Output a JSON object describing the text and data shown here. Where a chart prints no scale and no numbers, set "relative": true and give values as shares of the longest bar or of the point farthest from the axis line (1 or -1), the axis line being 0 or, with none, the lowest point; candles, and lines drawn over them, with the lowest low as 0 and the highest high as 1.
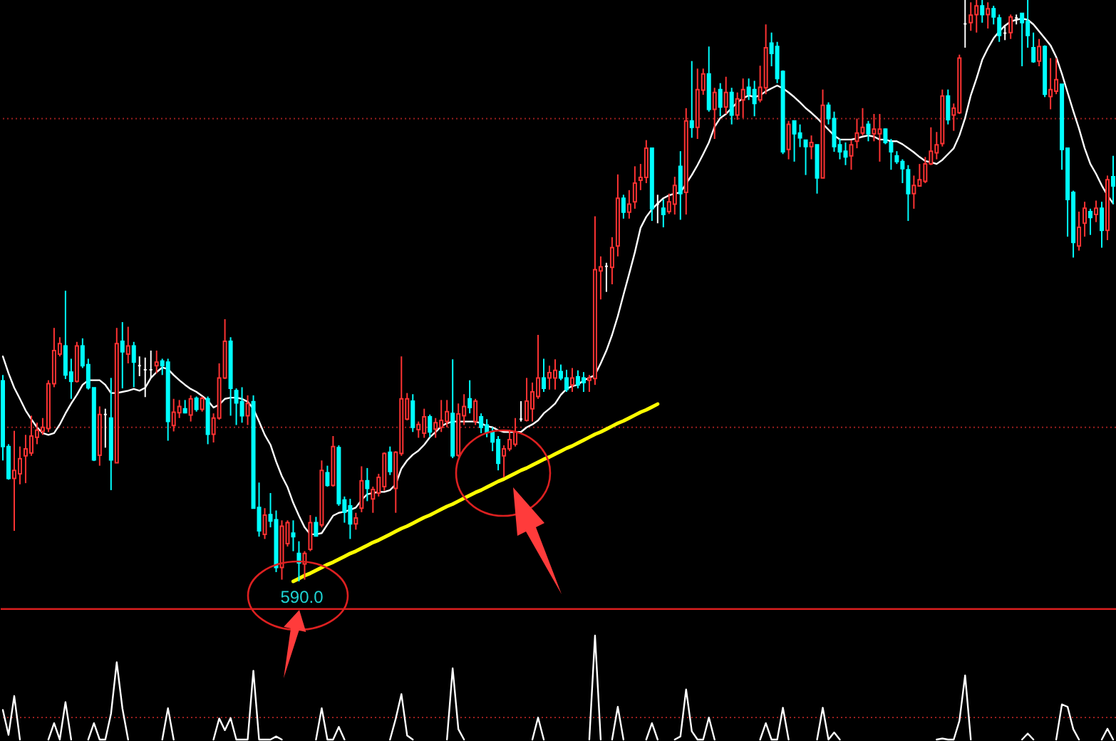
{
  "chart_data": [
    {
      "type": "candlestick",
      "relative": true,
      "categories": [
        null,
        null,
        null,
        null,
        null,
        null,
        null,
        null,
        null,
        null,
        null,
        null,
        null,
        null,
        null,
        null,
        null,
        null,
        null,
        null,
        null,
        null,
        null,
        null,
        null,
        null,
        null,
        null,
        null,
        null,
        null,
        null,
        null,
        null,
        null,
        null,
        null,
        null,
        null,
        null,
        null,
        null,
        null,
        null,
        null,
        null,
        null,
        null,
        null,
        null,
        null,
        null,
        null,
        null,
        null,
        null,
        null,
        null,
        null,
        null,
        null,
        null,
        null,
        null,
        null,
        null,
        null,
        null,
        null,
        null,
        null,
        null,
        null,
        null,
        null,
        null,
        null,
        null,
        null,
        null,
        null,
        null,
        null,
        null,
        null,
        null,
        null,
        null,
        null,
        null,
        null,
        null,
        null,
        null,
        null,
        null,
        null,
        null,
        null,
        null,
        null,
        null,
        null,
        null,
        null,
        null,
        null,
        null,
        null,
        null,
        null,
        null,
        null,
        null,
        null,
        null,
        null,
        null,
        null,
        null,
        null,
        null,
        null,
        null,
        null,
        null,
        null,
        null,
        null,
        null,
        null,
        null,
        null,
        null,
        null,
        null,
        null,
        null,
        null,
        null,
        null,
        null,
        null,
        null,
        null,
        null,
        null,
        null,
        null,
        null,
        null,
        null,
        null,
        null,
        null,
        null,
        null,
        null,
        null,
        null,
        null,
        null,
        null,
        null,
        null,
        null,
        null,
        null,
        null,
        null,
        null,
        null,
        null,
        null,
        null,
        null,
        null,
        null,
        null,
        null,
        null,
        null,
        null,
        null,
        null,
        null,
        null,
        null,
        null,
        null,
        null,
        null,
        null,
        null,
        null,
        null
      ],
      "ohlc": [
        [
          0.345,
          0.355,
          0.208,
          0.232
        ],
        [
          0.232,
          0.236,
          0.175,
          0.177
        ],
        [
          0.177,
          0.259,
          0.087,
          0.191
        ],
        [
          0.185,
          0.232,
          0.167,
          0.211
        ],
        [
          0.216,
          0.252,
          0.169,
          0.228
        ],
        [
          0.221,
          0.285,
          0.216,
          0.25
        ],
        [
          0.248,
          0.273,
          0.236,
          0.26
        ],
        [
          0.258,
          0.281,
          0.252,
          0.265
        ],
        [
          0.263,
          0.346,
          0.257,
          0.34
        ],
        [
          0.34,
          0.436,
          0.334,
          0.397
        ],
        [
          0.391,
          0.42,
          0.387,
          0.409
        ],
        [
          0.405,
          0.5,
          0.348,
          0.355
        ],
        [
          0.36,
          0.383,
          0.314,
          0.344
        ],
        [
          0.344,
          0.412,
          0.342,
          0.405
        ],
        [
          0.405,
          0.418,
          0.367,
          0.371
        ],
        [
          0.373,
          0.383,
          0.33,
          0.333
        ],
        [
          0.333,
          0.333,
          0.207,
          0.209
        ],
        [
          0.217,
          0.301,
          0.199,
          0.287
        ],
        [
          0.287,
          0.297,
          0.23,
          0.287
        ],
        [
          0.281,
          0.35,
          0.157,
          0.209
        ],
        [
          0.204,
          0.436,
          0.204,
          0.409
        ],
        [
          0.413,
          0.446,
          0.332,
          0.395
        ],
        [
          0.391,
          0.438,
          0.375,
          0.405
        ],
        [
          0.405,
          0.412,
          0.334,
          0.377
        ],
        [
          0.371,
          0.387,
          0.353,
          0.371
        ],
        [
          0.364,
          0.385,
          0.317,
          0.364
        ],
        [
          0.364,
          0.397,
          0.35,
          0.364
        ],
        [
          0.371,
          0.397,
          0.358,
          0.377
        ],
        [
          0.379,
          0.383,
          0.355,
          0.371
        ],
        [
          0.377,
          0.383,
          0.242,
          0.275
        ],
        [
          0.268,
          0.314,
          0.258,
          0.291
        ],
        [
          0.29,
          0.312,
          0.281,
          0.301
        ],
        [
          0.297,
          0.312,
          0.289,
          0.29
        ],
        [
          0.286,
          0.32,
          0.275,
          0.314
        ],
        [
          0.315,
          0.318,
          0.292,
          0.296
        ],
        [
          0.296,
          0.318,
          0.292,
          0.315
        ],
        [
          0.314,
          0.318,
          0.236,
          0.253
        ],
        [
          0.253,
          0.289,
          0.239,
          0.281
        ],
        [
          0.281,
          0.375,
          0.278,
          0.35
        ],
        [
          0.35,
          0.451,
          0.348,
          0.413
        ],
        [
          0.413,
          0.42,
          0.285,
          0.332
        ],
        [
          0.328,
          0.332,
          0.269,
          0.307
        ],
        [
          0.309,
          0.334,
          0.273,
          0.285
        ],
        [
          0.285,
          0.32,
          0.269,
          0.306
        ],
        [
          0.309,
          0.32,
          0.126,
          0.126
        ],
        [
          0.127,
          0.17,
          0.077,
          0.087
        ],
        [
          0.081,
          0.126,
          0.073,
          0.114
        ],
        [
          0.115,
          0.152,
          0.093,
          0.104
        ],
        [
          0.106,
          0.122,
          0.016,
          0.024
        ],
        [
          0.024,
          0.105,
          0.003,
          0.095
        ],
        [
          0.065,
          0.105,
          0.06,
          0.101
        ],
        [
          0.083,
          0.105,
          0.052,
          0.077
        ],
        [
          0.048,
          0.069,
          0.0,
          0.032
        ],
        [
          0.03,
          0.052,
          0.003,
          0.048
        ],
        [
          0.055,
          0.114,
          0.052,
          0.101
        ],
        [
          0.101,
          0.111,
          0.077,
          0.078
        ],
        [
          0.097,
          0.208,
          0.093,
          0.191
        ],
        [
          0.187,
          0.199,
          0.163,
          0.165
        ],
        [
          0.165,
          0.25,
          0.163,
          0.232
        ],
        [
          0.23,
          0.234,
          0.13,
          0.134
        ],
        [
          0.14,
          0.146,
          0.101,
          0.119
        ],
        [
          0.13,
          0.142,
          0.073,
          0.099
        ],
        [
          0.099,
          0.118,
          0.089,
          0.109
        ],
        [
          0.126,
          0.198,
          0.119,
          0.173
        ],
        [
          0.173,
          0.195,
          0.138,
          0.16
        ],
        [
          0.142,
          0.163,
          0.118,
          0.158
        ],
        [
          0.152,
          0.185,
          0.146,
          0.179
        ],
        [
          0.163,
          0.222,
          0.156,
          0.22
        ],
        [
          0.222,
          0.232,
          0.183,
          0.189
        ],
        [
          0.16,
          0.224,
          0.118,
          0.222
        ],
        [
          0.22,
          0.387,
          0.216,
          0.314
        ],
        [
          0.279,
          0.324,
          0.277,
          0.314
        ],
        [
          0.31,
          0.322,
          0.257,
          0.265
        ],
        [
          0.261,
          0.275,
          0.247,
          0.27
        ],
        [
          0.255,
          0.297,
          0.247,
          0.283
        ],
        [
          0.283,
          0.287,
          0.248,
          0.257
        ],
        [
          0.262,
          0.281,
          0.247,
          0.273
        ],
        [
          0.265,
          0.312,
          0.257,
          0.277
        ],
        [
          0.275,
          0.312,
          0.265,
          0.292
        ],
        [
          0.289,
          0.382,
          0.212,
          0.216
        ],
        [
          0.217,
          0.306,
          0.214,
          0.288
        ],
        [
          0.285,
          0.322,
          0.269,
          0.301
        ],
        [
          0.314,
          0.346,
          0.289,
          0.299
        ],
        [
          0.275,
          0.314,
          0.269,
          0.31
        ],
        [
          0.283,
          0.289,
          0.255,
          0.265
        ],
        [
          0.269,
          0.279,
          0.248,
          0.257
        ],
        [
          0.257,
          0.265,
          0.224,
          0.24
        ],
        [
          0.244,
          0.25,
          0.191,
          0.203
        ],
        [
          0.216,
          0.234,
          0.179,
          0.228
        ],
        [
          0.228,
          0.261,
          0.224,
          0.244
        ],
        [
          0.236,
          0.281,
          0.232,
          0.257
        ],
        [
          0.279,
          0.31,
          0.275,
          0.279
        ],
        [
          0.277,
          0.35,
          0.275,
          0.31
        ],
        [
          0.297,
          0.342,
          0.275,
          0.326
        ],
        [
          0.318,
          0.424,
          0.314,
          0.35
        ],
        [
          0.35,
          0.383,
          0.326,
          0.332
        ],
        [
          0.35,
          0.371,
          0.33,
          0.359
        ],
        [
          0.35,
          0.382,
          0.33,
          0.363
        ],
        [
          0.361,
          0.373,
          0.346,
          0.35
        ],
        [
          0.35,
          0.364,
          0.326,
          0.33
        ],
        [
          0.338,
          0.367,
          0.326,
          0.35
        ],
        [
          0.352,
          0.363,
          0.332,
          0.338
        ],
        [
          0.35,
          0.36,
          0.326,
          0.342
        ],
        [
          0.346,
          0.355,
          0.326,
          0.35
        ],
        [
          0.349,
          0.628,
          0.338,
          0.536
        ],
        [
          0.534,
          0.559,
          0.485,
          0.541
        ],
        [
          0.542,
          0.548,
          0.498,
          0.542
        ],
        [
          0.54,
          0.592,
          0.511,
          0.574
        ],
        [
          0.577,
          0.7,
          0.559,
          0.659
        ],
        [
          0.659,
          0.665,
          0.624,
          0.635
        ],
        [
          0.635,
          0.673,
          0.624,
          0.649
        ],
        [
          0.653,
          0.714,
          0.641,
          0.685
        ],
        [
          0.69,
          0.718,
          0.673,
          0.695
        ],
        [
          0.695,
          0.759,
          0.685,
          0.745
        ],
        [
          0.745,
          0.745,
          0.62,
          0.641
        ],
        [
          0.649,
          0.665,
          0.616,
          0.649
        ],
        [
          0.642,
          0.657,
          0.609,
          0.631
        ],
        [
          0.636,
          0.667,
          0.632,
          0.653
        ],
        [
          0.649,
          0.696,
          0.631,
          0.681
        ],
        [
          0.714,
          0.74,
          0.622,
          0.667
        ],
        [
          0.669,
          0.814,
          0.631,
          0.792
        ],
        [
          0.792,
          0.895,
          0.763,
          0.781
        ],
        [
          0.781,
          0.882,
          0.761,
          0.846
        ],
        [
          0.845,
          0.882,
          0.837,
          0.873
        ],
        [
          0.873,
          0.92,
          0.808,
          0.812
        ],
        [
          0.812,
          0.849,
          0.761,
          0.841
        ],
        [
          0.846,
          0.857,
          0.8,
          0.816
        ],
        [
          0.816,
          0.868,
          0.804,
          0.841
        ],
        [
          0.841,
          0.849,
          0.786,
          0.802
        ],
        [
          0.802,
          0.841,
          0.794,
          0.83
        ],
        [
          0.828,
          0.865,
          0.797,
          0.846
        ],
        [
          0.85,
          0.865,
          0.828,
          0.838
        ],
        [
          0.846,
          0.861,
          0.8,
          0.822
        ],
        [
          0.828,
          0.887,
          0.824,
          0.85
        ],
        [
          0.849,
          0.958,
          0.838,
          0.918
        ],
        [
          0.926,
          0.944,
          0.886,
          0.908
        ],
        [
          0.92,
          0.928,
          0.857,
          0.865
        ],
        [
          0.877,
          0.879,
          0.735,
          0.739
        ],
        [
          0.743,
          0.792,
          0.726,
          0.786
        ],
        [
          0.792,
          0.792,
          0.722,
          0.77
        ],
        [
          0.771,
          0.786,
          0.747,
          0.763
        ],
        [
          0.759,
          0.759,
          0.699,
          0.748
        ],
        [
          0.748,
          0.767,
          0.726,
          0.755
        ],
        [
          0.751,
          0.751,
          0.667,
          0.694
        ],
        [
          0.694,
          0.846,
          0.694,
          0.819
        ],
        [
          0.819,
          0.824,
          0.786,
          0.796
        ],
        [
          0.796,
          0.808,
          0.739,
          0.748
        ],
        [
          0.751,
          0.761,
          0.726,
          0.739
        ],
        [
          0.74,
          0.755,
          0.716,
          0.73
        ],
        [
          0.732,
          0.759,
          0.708,
          0.751
        ],
        [
          0.757,
          0.796,
          0.745,
          0.771
        ],
        [
          0.771,
          0.814,
          0.767,
          0.781
        ],
        [
          0.786,
          0.792,
          0.757,
          0.77
        ],
        [
          0.77,
          0.804,
          0.757,
          0.778
        ],
        [
          0.77,
          0.804,
          0.722,
          0.778
        ],
        [
          0.778,
          0.779,
          0.752,
          0.755
        ],
        [
          0.755,
          0.761,
          0.708,
          0.739
        ],
        [
          0.732,
          0.74,
          0.718,
          0.722
        ],
        [
          0.722,
          0.726,
          0.685,
          0.71
        ],
        [
          0.708,
          0.716,
          0.62,
          0.667
        ],
        [
          0.667,
          0.698,
          0.641,
          0.681
        ],
        [
          0.68,
          0.718,
          0.68,
          0.691
        ],
        [
          0.688,
          0.73,
          0.685,
          0.718
        ],
        [
          0.718,
          0.781,
          0.716,
          0.74
        ],
        [
          0.737,
          0.773,
          0.726,
          0.751
        ],
        [
          0.753,
          0.846,
          0.748,
          0.835
        ],
        [
          0.835,
          0.846,
          0.786,
          0.794
        ],
        [
          0.802,
          0.822,
          0.775,
          0.814
        ],
        [
          0.806,
          0.906,
          0.804,
          0.9
        ],
        [
          0.959,
          1.0,
          0.918,
          0.959
        ],
        [
          0.961,
          0.996,
          0.947,
          0.974
        ],
        [
          0.975,
          1.0,
          0.944,
          0.99
        ],
        [
          0.99,
          1.0,
          0.961,
          0.975
        ],
        [
          0.975,
          0.996,
          0.951,
          0.985
        ],
        [
          0.985,
          0.99,
          0.958,
          0.971
        ],
        [
          0.969,
          0.975,
          0.928,
          0.939
        ],
        [
          0.943,
          0.955,
          0.931,
          0.943
        ],
        [
          0.944,
          0.975,
          0.933,
          0.971
        ],
        [
          0.969,
          0.975,
          0.958,
          0.969
        ],
        [
          0.977,
          0.977,
          0.886,
          0.961
        ],
        [
          0.963,
          1.0,
          0.918,
          0.939
        ],
        [
          0.918,
          0.944,
          0.892,
          0.894
        ],
        [
          0.895,
          0.933,
          0.886,
          0.92
        ],
        [
          0.92,
          0.922,
          0.833,
          0.838
        ],
        [
          0.834,
          0.9,
          0.812,
          0.846
        ],
        [
          0.843,
          0.9,
          0.838,
          0.863
        ],
        [
          0.855,
          0.855,
          0.708,
          0.743
        ],
        [
          0.745,
          0.745,
          0.593,
          0.657
        ],
        [
          0.669,
          0.672,
          0.557,
          0.583
        ],
        [
          0.577,
          0.636,
          0.569,
          0.609
        ],
        [
          0.616,
          0.653,
          0.593,
          0.642
        ],
        [
          0.636,
          0.641,
          0.596,
          0.626
        ],
        [
          0.631,
          0.655,
          0.618,
          0.642
        ],
        [
          0.642,
          0.653,
          0.574,
          0.604
        ],
        [
          0.604,
          0.698,
          0.587,
          0.691
        ],
        [
          0.696,
          0.732,
          0.649,
          0.68
        ]
      ],
      "colors": [
        "#00ffff",
        "#00ffff",
        "#ff3333",
        "#ff3333",
        "#ff3333",
        "#ff3333",
        "#ff3333",
        "#ff3333",
        "#ff3333",
        "#ff3333",
        "#ff3333",
        "#00ffff",
        "#00ffff",
        "#ff3333",
        "#00ffff",
        "#00ffff",
        "#00ffff",
        "#ff3333",
        "#ffffff",
        "#00ffff",
        "#ff3333",
        "#00ffff",
        "#ff3333",
        "#00ffff",
        "#ffffff",
        "#ffffff",
        "#ffffff",
        "#ff3333",
        "#00ffff",
        "#00ffff",
        "#ff3333",
        "#ff3333",
        "#00ffff",
        "#ff3333",
        "#00ffff",
        "#ff3333",
        "#00ffff",
        "#ff3333",
        "#ff3333",
        "#ff3333",
        "#00ffff",
        "#00ffff",
        "#00ffff",
        "#ff3333",
        "#00ffff",
        "#00ffff",
        "#ff3333",
        "#00ffff",
        "#00ffff",
        "#ff3333",
        "#ff3333",
        "#00ffff",
        "#00ffff",
        "#ff3333",
        "#ff3333",
        "#00ffff",
        "#ff3333",
        "#00ffff",
        "#ff3333",
        "#00ffff",
        "#00ffff",
        "#00ffff",
        "#ff3333",
        "#ff3333",
        "#00ffff",
        "#ff3333",
        "#ff3333",
        "#ff3333",
        "#00ffff",
        "#ff3333",
        "#ff3333",
        "#ff3333",
        "#00ffff",
        "#ff3333",
        "#ff3333",
        "#00ffff",
        "#ff3333",
        "#ff3333",
        "#ff3333",
        "#00ffff",
        "#ff3333",
        "#ff3333",
        "#00ffff",
        "#ff3333",
        "#00ffff",
        "#00ffff",
        "#00ffff",
        "#00ffff",
        "#ff3333",
        "#ff3333",
        "#ff3333",
        "#ffffff",
        "#ff3333",
        "#ff3333",
        "#ff3333",
        "#00ffff",
        "#ff3333",
        "#ff3333",
        "#00ffff",
        "#00ffff",
        "#ff3333",
        "#00ffff",
        "#00ffff",
        "#ff3333",
        "#ff3333",
        "#ff3333",
        "#ffffff",
        "#ff3333",
        "#ff3333",
        "#00ffff",
        "#ff3333",
        "#ff3333",
        "#ff3333",
        "#ff3333",
        "#00ffff",
        "#ffffff",
        "#00ffff",
        "#ff3333",
        "#ff3333",
        "#00ffff",
        "#ff3333",
        "#00ffff",
        "#ff3333",
        "#ff3333",
        "#00ffff",
        "#ff3333",
        "#00ffff",
        "#ff3333",
        "#00ffff",
        "#ff3333",
        "#ff3333",
        "#00ffff",
        "#00ffff",
        "#ff3333",
        "#ff3333",
        "#00ffff",
        "#00ffff",
        "#00ffff",
        "#ff3333",
        "#00ffff",
        "#00ffff",
        "#00ffff",
        "#ff3333",
        "#00ffff",
        "#ff3333",
        "#00ffff",
        "#00ffff",
        "#00ffff",
        "#00ffff",
        "#ff3333",
        "#ff3333",
        "#ff3333",
        "#00ffff",
        "#ff3333",
        "#ff3333",
        "#00ffff",
        "#00ffff",
        "#00ffff",
        "#00ffff",
        "#00ffff",
        "#ff3333",
        "#ff3333",
        "#ff3333",
        "#ff3333",
        "#ff3333",
        "#ff3333",
        "#00ffff",
        "#ff3333",
        "#ff3333",
        "#ffffff",
        "#ff3333",
        "#ff3333",
        "#00ffff",
        "#ff3333",
        "#00ffff",
        "#00ffff",
        "#ffffff",
        "#ff3333",
        "#ffffff",
        "#00ffff",
        "#00ffff",
        "#00ffff",
        "#ff3333",
        "#00ffff",
        "#ff3333",
        "#ff3333",
        "#00ffff",
        "#00ffff",
        "#00ffff",
        "#ff3333",
        "#ff3333",
        "#00ffff",
        "#ff3333",
        "#00ffff",
        "#ff3333",
        "#00ffff"
      ],
      "series": [
        {
          "type": "line",
          "color": "#ffffff",
          "values": [
            0.387,
            0.358,
            0.333,
            0.314,
            0.294,
            0.279,
            0.265,
            0.255,
            0.252,
            0.255,
            0.27,
            0.289,
            0.306,
            0.321,
            0.338,
            0.346,
            0.346,
            0.346,
            0.338,
            0.324,
            0.324,
            0.326,
            0.328,
            0.331,
            0.328,
            0.333,
            0.35,
            0.36,
            0.368,
            0.365,
            0.355,
            0.346,
            0.338,
            0.331,
            0.326,
            0.319,
            0.311,
            0.299,
            0.304,
            0.314,
            0.316,
            0.316,
            0.314,
            0.309,
            0.297,
            0.275,
            0.252,
            0.235,
            0.206,
            0.181,
            0.162,
            0.135,
            0.113,
            0.093,
            0.081,
            0.081,
            0.083,
            0.098,
            0.113,
            0.118,
            0.12,
            0.123,
            0.127,
            0.14,
            0.15,
            0.152,
            0.154,
            0.154,
            0.157,
            0.167,
            0.194,
            0.208,
            0.218,
            0.225,
            0.235,
            0.248,
            0.257,
            0.267,
            0.272,
            0.275,
            0.275,
            0.275,
            0.275,
            0.275,
            0.272,
            0.267,
            0.265,
            0.26,
            0.257,
            0.257,
            0.257,
            0.257,
            0.265,
            0.27,
            0.277,
            0.289,
            0.297,
            0.306,
            0.321,
            0.331,
            0.336,
            0.338,
            0.346,
            0.35,
            0.355,
            0.375,
            0.397,
            0.424,
            0.456,
            0.493,
            0.529,
            0.566,
            0.608,
            0.627,
            0.64,
            0.65,
            0.659,
            0.664,
            0.667,
            0.669,
            0.684,
            0.699,
            0.716,
            0.735,
            0.755,
            0.782,
            0.797,
            0.804,
            0.814,
            0.824,
            0.831,
            0.836,
            0.833,
            0.836,
            0.843,
            0.848,
            0.853,
            0.848,
            0.841,
            0.833,
            0.824,
            0.814,
            0.806,
            0.797,
            0.787,
            0.777,
            0.767,
            0.76,
            0.76,
            0.76,
            0.762,
            0.765,
            0.767,
            0.765,
            0.76,
            0.76,
            0.757,
            0.757,
            0.752,
            0.745,
            0.738,
            0.73,
            0.723,
            0.721,
            0.718,
            0.725,
            0.735,
            0.745,
            0.767,
            0.797,
            0.836,
            0.865,
            0.897,
            0.917,
            0.934,
            0.946,
            0.956,
            0.963,
            0.966,
            0.968,
            0.966,
            0.958,
            0.946,
            0.934,
            0.922,
            0.902,
            0.873,
            0.841,
            0.809,
            0.779,
            0.745,
            0.718,
            0.701,
            0.681,
            0.664,
            0.65
          ]
        },
        {
          "type": "line",
          "color": "#ffff00",
          "values": [
            null,
            null,
            null,
            null,
            null,
            null,
            null,
            null,
            null,
            null,
            null,
            null,
            null,
            null,
            null,
            null,
            null,
            null,
            null,
            null,
            null,
            null,
            null,
            null,
            null,
            null,
            null,
            null,
            null,
            null,
            null,
            null,
            null,
            null,
            null,
            null,
            null,
            null,
            null,
            null,
            null,
            null,
            null,
            null,
            null,
            null,
            null,
            null,
            null,
            null,
            null,
            0.0,
            0.005,
            0.01,
            0.014,
            0.019,
            0.024,
            0.029,
            0.033,
            0.038,
            0.043,
            0.048,
            0.052,
            0.057,
            0.062,
            0.067,
            0.071,
            0.076,
            0.081,
            0.086,
            0.091,
            0.095,
            0.1,
            0.105,
            0.11,
            0.114,
            0.119,
            0.124,
            0.129,
            0.133,
            0.138,
            0.143,
            0.148,
            0.153,
            0.157,
            0.162,
            0.167,
            0.172,
            0.176,
            0.181,
            0.186,
            0.191,
            0.195,
            0.2,
            0.205,
            0.21,
            0.214,
            0.219,
            0.224,
            0.229,
            0.233,
            0.238,
            0.243,
            0.248,
            0.253,
            0.257,
            0.262,
            0.267,
            0.272,
            0.276,
            0.281,
            0.286,
            0.291,
            0.295,
            0.3,
            0.305,
            null,
            null,
            null,
            null,
            null,
            null,
            null,
            null,
            null,
            null,
            null,
            null,
            null,
            null,
            null,
            null,
            null,
            null,
            null,
            null,
            null,
            null,
            null,
            null,
            null,
            null,
            null,
            null,
            null,
            null,
            null,
            null,
            null,
            null,
            null,
            null,
            null,
            null,
            null,
            null,
            null,
            null,
            null,
            null,
            null,
            null,
            null,
            null,
            null,
            null,
            null,
            null,
            null,
            null,
            null,
            null,
            null,
            null,
            null,
            null,
            null,
            null,
            null,
            null,
            null,
            null,
            null,
            null,
            null,
            null,
            null,
            null,
            null,
            null,
            null,
            null,
            null,
            null,
            null,
            null
          ]
        }
      ],
      "ref_lines": [
        {
          "axis": "y",
          "value": 0.265,
          "color": "#9a1f1f",
          "line_style": "dotted"
        },
        {
          "axis": "y",
          "value": 0.796,
          "color": "#9a1f1f",
          "line_style": "dotted"
        }
      ],
      "annotations": [
        {
          "text": "590.0",
          "y": 0
        }
      ]
    },
    {
      "type": "line",
      "relative": true,
      "categories": [
        null,
        null,
        null,
        null,
        null,
        null,
        null,
        null,
        null,
        null,
        null,
        null,
        null,
        null,
        null,
        null,
        null,
        null,
        null,
        null,
        null,
        null,
        null,
        null,
        null,
        null,
        null,
        null,
        null,
        null,
        null,
        null,
        null,
        null,
        null,
        null,
        null,
        null,
        null,
        null,
        null,
        null,
        null,
        null,
        null,
        null,
        null,
        null,
        null,
        null,
        null,
        null,
        null,
        null,
        null,
        null,
        null,
        null,
        null,
        null,
        null,
        null,
        null,
        null,
        null,
        null,
        null,
        null,
        null,
        null,
        null,
        null,
        null,
        null,
        null,
        null,
        null,
        null,
        null,
        null,
        null,
        null,
        null,
        null,
        null,
        null,
        null,
        null,
        null,
        null,
        null,
        null,
        null,
        null,
        null,
        null,
        null,
        null,
        null,
        null,
        null,
        null,
        null,
        null,
        null,
        null,
        null,
        null,
        null,
        null,
        null,
        null,
        null,
        null,
        null,
        null,
        null,
        null,
        null,
        null,
        null,
        null,
        null,
        null,
        null,
        null,
        null,
        null,
        null,
        null,
        null,
        null,
        null,
        null,
        null,
        null,
        null,
        null,
        null,
        null,
        null,
        null,
        null,
        null,
        null,
        null,
        null,
        null,
        null,
        null,
        null,
        null,
        null,
        null,
        null,
        null,
        null,
        null,
        null,
        null,
        null,
        null,
        null,
        null,
        null,
        null,
        null,
        null,
        null,
        null,
        null,
        null,
        null,
        null,
        null,
        null,
        null,
        null,
        null,
        null,
        null,
        null,
        null,
        null,
        null,
        null,
        null,
        null,
        null,
        null,
        null,
        null,
        null,
        null,
        null,
        null
      ],
      "series": [
        {
          "color": "#ffffff",
          "values": [
            0.284,
            0.045,
            0.419,
            0,
            null,
            null,
            null,
            null,
            0,
            0.158,
            0,
            0.36,
            0,
            null,
            null,
            0,
            0.158,
            0,
            0,
            0.25,
            0.743,
            0.3,
            0,
            null,
            null,
            null,
            null,
            null,
            0,
            0.302,
            0,
            null,
            null,
            null,
            null,
            null,
            null,
            0,
            0.203,
            0.09,
            0.207,
            0,
            0,
            0,
            0.662,
            0,
            0,
            0,
            0.03,
            0,
            null,
            null,
            null,
            null,
            null,
            0,
            0.302,
            0,
            0,
            0.122,
            0,
            null,
            null,
            null,
            null,
            null,
            null,
            null,
            0,
            0.2,
            0.437,
            0.04,
            0,
            null,
            null,
            null,
            null,
            null,
            0,
            0.685,
            0.1,
            0,
            null,
            null,
            null,
            null,
            null,
            null,
            null,
            null,
            null,
            null,
            null,
            0,
            0.212,
            0,
            null,
            null,
            null,
            null,
            null,
            null,
            null,
            0,
            1,
            0,
            null,
            0,
            0.315,
            0,
            null,
            null,
            null,
            0,
            0.158,
            0,
            null,
            null,
            0,
            0.03,
            0.482,
            0.08,
            0,
            0,
            0.212,
            0,
            null,
            null,
            null,
            null,
            null,
            null,
            null,
            0,
            0.158,
            0,
            0,
            0.306,
            0,
            null,
            null,
            null,
            null,
            0,
            0.306,
            0,
            0.068,
            0,
            null,
            null,
            null,
            null,
            null,
            null,
            null,
            null,
            null,
            null,
            null,
            null,
            null,
            null,
            null,
            null,
            0,
            0.01,
            0,
            0,
            0.18,
            0.617,
            0,
            null,
            null,
            null,
            null,
            null,
            null,
            null,
            null,
            0,
            0.058,
            0,
            null,
            null,
            null,
            0,
            0.338,
            0.315,
            0.1,
            0,
            null,
            null,
            null,
            0,
            0.104,
            0
          ]
        }
      ],
      "ref_lines": [
        {
          "axis": "y",
          "value": 0.212,
          "color": "#9a1f1f",
          "line_style": "dotted"
        }
      ]
    }
  ]
}
